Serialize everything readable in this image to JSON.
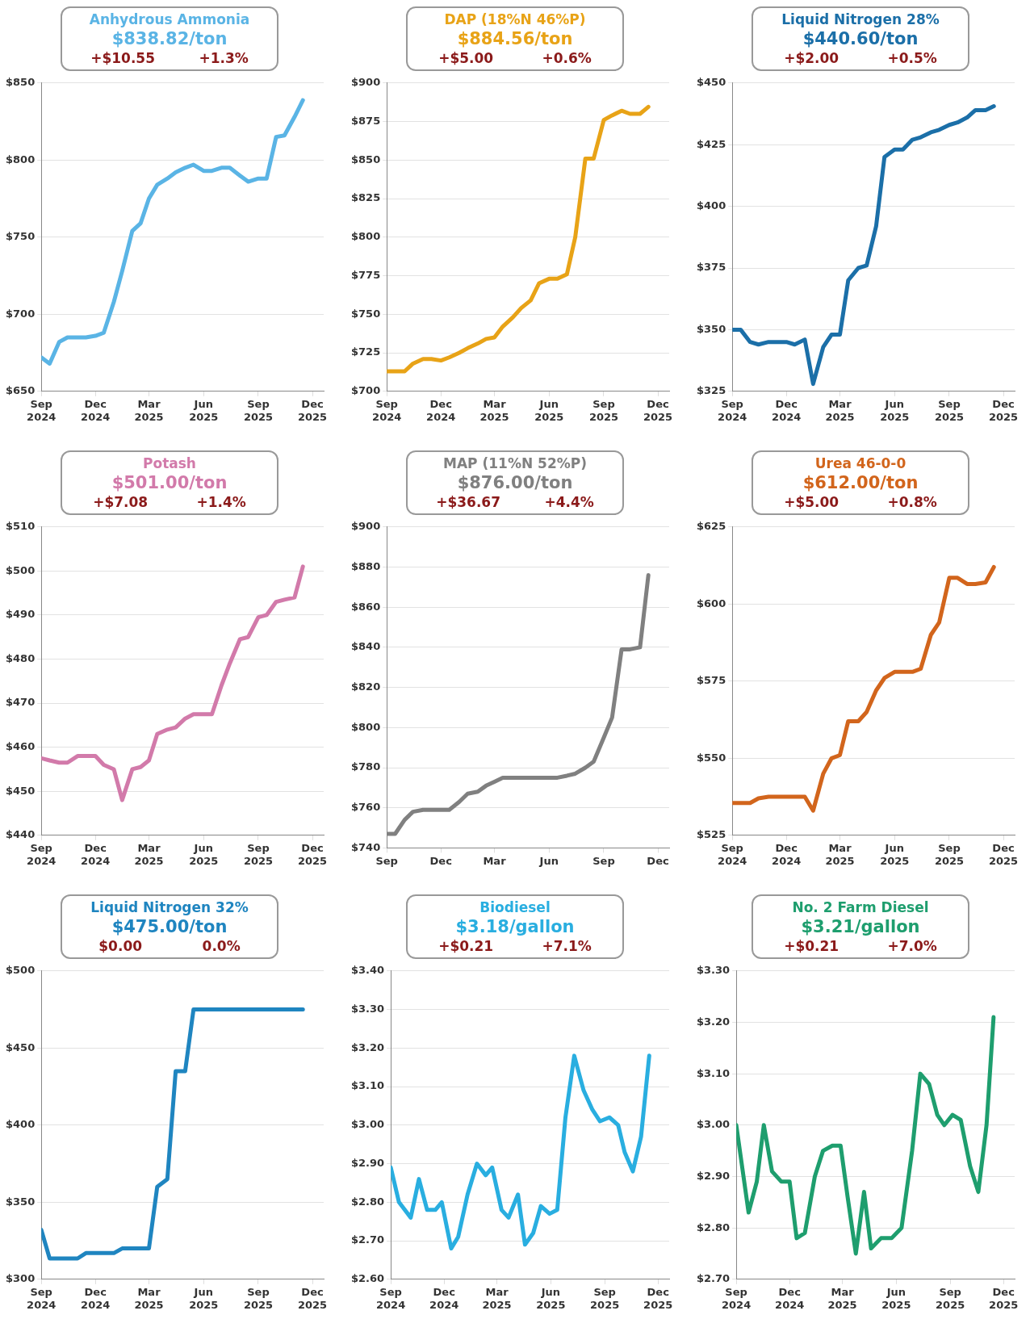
{
  "chart_data": [
    {
      "type": "line",
      "title": "Anhydrous Ammonia",
      "subtitle": "$838.82/ton",
      "annotations": [
        "+$10.55",
        "+1.3%"
      ],
      "marker": "none",
      "grid": "y",
      "x": [
        "2024-09-01",
        "2024-09-15",
        "2024-10-01",
        "2024-10-15",
        "2024-11-01",
        "2024-11-15",
        "2024-12-01",
        "2024-12-15",
        "2025-01-01",
        "2025-01-15",
        "2025-02-01",
        "2025-02-15",
        "2025-03-01",
        "2025-03-15",
        "2025-04-01",
        "2025-04-15",
        "2025-05-01",
        "2025-05-15",
        "2025-06-01",
        "2025-06-15",
        "2025-07-01",
        "2025-07-15",
        "2025-08-01",
        "2025-08-15",
        "2025-09-01",
        "2025-09-15",
        "2025-10-01",
        "2025-10-15",
        "2025-11-01",
        "2025-11-15"
      ],
      "series": [
        {
          "color": "#5ab4e5",
          "values": [
            672,
            668,
            682,
            685,
            685,
            685,
            686,
            688,
            708,
            728,
            754,
            759,
            775,
            784,
            788,
            792,
            795,
            797,
            793,
            793,
            795,
            795,
            790,
            786,
            788,
            788,
            815,
            816,
            828,
            838.82
          ]
        }
      ],
      "xlim": [
        "2024-09-01",
        "2025-12-20"
      ],
      "xticks": [
        {
          "value": "2024-09-01",
          "label": "Sep 2024"
        },
        {
          "value": "2024-12-01",
          "label": "Dec 2024"
        },
        {
          "value": "2025-03-01",
          "label": "Mar 2025"
        },
        {
          "value": "2025-06-01",
          "label": "Jun 2025"
        },
        {
          "value": "2025-09-01",
          "label": "Sep 2025"
        },
        {
          "value": "2025-12-01",
          "label": "Dec 2025"
        }
      ],
      "ylim": [
        650,
        850
      ],
      "yticks": [
        {
          "value": 650,
          "label": "$650"
        },
        {
          "value": 700,
          "label": "$700"
        },
        {
          "value": 750,
          "label": "$750"
        },
        {
          "value": 800,
          "label": "$800"
        },
        {
          "value": 850,
          "label": "$850"
        }
      ]
    },
    {
      "type": "line",
      "title": "DAP (18%N 46%P)",
      "subtitle": "$884.56/ton",
      "annotations": [
        "+$5.00",
        "+0.6%"
      ],
      "marker": "none",
      "grid": "y",
      "x": [
        "2024-09-01",
        "2024-09-15",
        "2024-10-01",
        "2024-10-15",
        "2024-11-01",
        "2024-11-15",
        "2024-12-01",
        "2024-12-15",
        "2025-01-01",
        "2025-01-15",
        "2025-02-01",
        "2025-02-15",
        "2025-03-01",
        "2025-03-15",
        "2025-04-01",
        "2025-04-15",
        "2025-05-01",
        "2025-05-15",
        "2025-06-01",
        "2025-06-15",
        "2025-07-01",
        "2025-07-15",
        "2025-08-01",
        "2025-08-15",
        "2025-09-01",
        "2025-09-15",
        "2025-10-01",
        "2025-10-15",
        "2025-11-01",
        "2025-11-15"
      ],
      "series": [
        {
          "color": "#e8a317",
          "values": [
            713,
            713,
            713,
            718,
            721,
            721,
            720,
            722,
            725,
            728,
            731,
            734,
            735,
            742,
            748,
            754,
            759,
            770,
            773,
            773,
            776,
            800,
            851,
            851,
            876,
            879,
            882,
            880,
            880,
            884.56
          ]
        }
      ],
      "xlim": [
        "2024-09-01",
        "2025-12-20"
      ],
      "xticks": [
        {
          "value": "2024-09-01",
          "label": "Sep 2024"
        },
        {
          "value": "2024-12-01",
          "label": "Dec 2024"
        },
        {
          "value": "2025-03-01",
          "label": "Mar 2025"
        },
        {
          "value": "2025-06-01",
          "label": "Jun 2025"
        },
        {
          "value": "2025-09-01",
          "label": "Sep 2025"
        },
        {
          "value": "2025-12-01",
          "label": "Dec 2025"
        }
      ],
      "ylim": [
        700,
        900
      ],
      "yticks": [
        {
          "value": 700,
          "label": "$700"
        },
        {
          "value": 725,
          "label": "$725"
        },
        {
          "value": 750,
          "label": "$750"
        },
        {
          "value": 775,
          "label": "$775"
        },
        {
          "value": 800,
          "label": "$800"
        },
        {
          "value": 825,
          "label": "$825"
        },
        {
          "value": 850,
          "label": "$850"
        },
        {
          "value": 875,
          "label": "$875"
        },
        {
          "value": 900,
          "label": "$900"
        }
      ]
    },
    {
      "type": "line",
      "title": "Liquid Nitrogen 28%",
      "subtitle": "$440.60/ton",
      "annotations": [
        "+$2.00",
        "+0.5%"
      ],
      "marker": "none",
      "grid": "y",
      "x": [
        "2024-09-01",
        "2024-09-15",
        "2024-10-01",
        "2024-10-15",
        "2024-11-01",
        "2024-11-15",
        "2024-12-01",
        "2024-12-15",
        "2025-01-01",
        "2025-01-15",
        "2025-02-01",
        "2025-02-15",
        "2025-03-01",
        "2025-03-15",
        "2025-04-01",
        "2025-04-15",
        "2025-05-01",
        "2025-05-15",
        "2025-06-01",
        "2025-06-15",
        "2025-07-01",
        "2025-07-15",
        "2025-08-01",
        "2025-08-15",
        "2025-09-01",
        "2025-09-15",
        "2025-10-01",
        "2025-10-15",
        "2025-11-01",
        "2025-11-15"
      ],
      "series": [
        {
          "color": "#1b6fa8",
          "values": [
            350,
            350,
            345,
            344,
            345,
            345,
            345,
            344,
            346,
            328,
            343,
            348,
            348,
            370,
            375,
            376,
            392,
            420,
            423,
            423,
            427,
            428,
            430,
            431,
            433,
            434,
            436,
            439,
            439,
            440.6
          ]
        }
      ],
      "xlim": [
        "2024-09-01",
        "2025-12-20"
      ],
      "xticks": [
        {
          "value": "2024-09-01",
          "label": "Sep 2024"
        },
        {
          "value": "2024-12-01",
          "label": "Dec 2024"
        },
        {
          "value": "2025-03-01",
          "label": "Mar 2025"
        },
        {
          "value": "2025-06-01",
          "label": "Jun 2025"
        },
        {
          "value": "2025-09-01",
          "label": "Sep 2025"
        },
        {
          "value": "2025-12-01",
          "label": "Dec 2025"
        }
      ],
      "ylim": [
        325,
        450
      ],
      "yticks": [
        {
          "value": 325,
          "label": "$325"
        },
        {
          "value": 350,
          "label": "$350"
        },
        {
          "value": 375,
          "label": "$375"
        },
        {
          "value": 400,
          "label": "$400"
        },
        {
          "value": 425,
          "label": "$425"
        },
        {
          "value": 450,
          "label": "$450"
        }
      ]
    },
    {
      "type": "line",
      "title": "Potash",
      "subtitle": "$501.00/ton",
      "annotations": [
        "+$7.08",
        "+1.4%"
      ],
      "marker": "none",
      "grid": "y",
      "x": [
        "2024-09-01",
        "2024-09-15",
        "2024-10-01",
        "2024-10-15",
        "2024-11-01",
        "2024-11-15",
        "2024-12-01",
        "2024-12-15",
        "2025-01-01",
        "2025-01-15",
        "2025-02-01",
        "2025-02-15",
        "2025-03-01",
        "2025-03-15",
        "2025-04-01",
        "2025-04-15",
        "2025-05-01",
        "2025-05-15",
        "2025-06-01",
        "2025-06-15",
        "2025-07-01",
        "2025-07-15",
        "2025-08-01",
        "2025-08-15",
        "2025-09-01",
        "2025-09-15",
        "2025-10-01",
        "2025-10-15",
        "2025-11-01",
        "2025-11-15"
      ],
      "series": [
        {
          "color": "#d27aaa",
          "values": [
            457.5,
            457,
            456.5,
            456.5,
            458,
            458,
            458,
            456,
            455,
            448,
            455,
            455.5,
            457,
            463,
            464,
            464.5,
            466.5,
            467.5,
            467.5,
            467.5,
            474,
            479,
            484.5,
            485,
            489.5,
            490,
            493,
            493.5,
            494,
            501
          ]
        }
      ],
      "xlim": [
        "2024-09-01",
        "2025-12-20"
      ],
      "xticks": [
        {
          "value": "2024-09-01",
          "label": "Sep 2024"
        },
        {
          "value": "2024-12-01",
          "label": "Dec 2024"
        },
        {
          "value": "2025-03-01",
          "label": "Mar 2025"
        },
        {
          "value": "2025-06-01",
          "label": "Jun 2025"
        },
        {
          "value": "2025-09-01",
          "label": "Sep 2025"
        },
        {
          "value": "2025-12-01",
          "label": "Dec 2025"
        }
      ],
      "ylim": [
        440,
        510
      ],
      "yticks": [
        {
          "value": 440,
          "label": "$440"
        },
        {
          "value": 450,
          "label": "$450"
        },
        {
          "value": 460,
          "label": "$460"
        },
        {
          "value": 470,
          "label": "$470"
        },
        {
          "value": 480,
          "label": "$480"
        },
        {
          "value": 490,
          "label": "$490"
        },
        {
          "value": 500,
          "label": "$500"
        },
        {
          "value": 510,
          "label": "$510"
        }
      ]
    },
    {
      "type": "line",
      "title": "MAP (11%N 52%P)",
      "subtitle": "$876.00/ton",
      "annotations": [
        "+$36.67",
        "+4.4%"
      ],
      "marker": "none",
      "grid": "y",
      "x": [
        "2024-09-01",
        "2024-09-15",
        "2024-10-01",
        "2024-10-15",
        "2024-11-01",
        "2024-11-15",
        "2024-12-01",
        "2024-12-15",
        "2025-01-01",
        "2025-01-15",
        "2025-02-01",
        "2025-02-15",
        "2025-03-01",
        "2025-03-15",
        "2025-04-01",
        "2025-04-15",
        "2025-05-01",
        "2025-05-15",
        "2025-06-01",
        "2025-06-15",
        "2025-07-01",
        "2025-07-15",
        "2025-08-01",
        "2025-08-15",
        "2025-09-01",
        "2025-09-15",
        "2025-10-01",
        "2025-10-15",
        "2025-11-01",
        "2025-11-15"
      ],
      "series": [
        {
          "color": "#808080",
          "values": [
            747,
            747,
            754,
            758,
            759,
            759,
            759,
            759,
            763,
            767,
            768,
            771,
            773,
            775,
            775,
            775,
            775,
            775,
            775,
            775,
            776,
            777,
            780,
            783,
            795,
            805,
            839,
            839,
            840,
            876
          ]
        }
      ],
      "xlim": [
        "2024-09-01",
        "2025-12-20"
      ],
      "xticks": [
        {
          "value": "2024-09-01",
          "label": "Sep"
        },
        {
          "value": "2024-12-01",
          "label": "Dec"
        },
        {
          "value": "2025-03-01",
          "label": "Mar"
        },
        {
          "value": "2025-06-01",
          "label": "Jun"
        },
        {
          "value": "2025-09-01",
          "label": "Sep"
        },
        {
          "value": "2025-12-01",
          "label": "Dec"
        }
      ],
      "ylim": [
        740,
        900
      ],
      "yticks": [
        {
          "value": 740,
          "label": "$740"
        },
        {
          "value": 760,
          "label": "$760"
        },
        {
          "value": 780,
          "label": "$780"
        },
        {
          "value": 800,
          "label": "$800"
        },
        {
          "value": 820,
          "label": "$820"
        },
        {
          "value": 840,
          "label": "$840"
        },
        {
          "value": 860,
          "label": "$860"
        },
        {
          "value": 880,
          "label": "$880"
        },
        {
          "value": 900,
          "label": "$900"
        }
      ]
    },
    {
      "type": "line",
      "title": "Urea 46-0-0",
      "subtitle": "$612.00/ton",
      "annotations": [
        "+$5.00",
        "+0.8%"
      ],
      "marker": "none",
      "grid": "y",
      "x": [
        "2024-09-01",
        "2024-09-15",
        "2024-10-01",
        "2024-10-15",
        "2024-11-01",
        "2024-11-15",
        "2024-12-01",
        "2024-12-15",
        "2025-01-01",
        "2025-01-15",
        "2025-02-01",
        "2025-02-15",
        "2025-03-01",
        "2025-03-15",
        "2025-04-01",
        "2025-04-15",
        "2025-05-01",
        "2025-05-15",
        "2025-06-01",
        "2025-06-15",
        "2025-07-01",
        "2025-07-15",
        "2025-08-01",
        "2025-08-15",
        "2025-09-01",
        "2025-09-15",
        "2025-10-01",
        "2025-10-15",
        "2025-11-01",
        "2025-11-15"
      ],
      "series": [
        {
          "color": "#d2651c",
          "values": [
            535.5,
            535.5,
            535.5,
            537,
            537.5,
            537.5,
            537.5,
            537.5,
            537.5,
            533,
            545,
            550,
            551,
            562,
            562,
            565,
            572,
            576,
            578,
            578,
            578,
            579,
            590,
            594,
            608.5,
            608.5,
            606.5,
            606.5,
            607,
            612
          ]
        }
      ],
      "xlim": [
        "2024-09-01",
        "2025-12-20"
      ],
      "xticks": [
        {
          "value": "2024-09-01",
          "label": "Sep 2024"
        },
        {
          "value": "2024-12-01",
          "label": "Dec 2024"
        },
        {
          "value": "2025-03-01",
          "label": "Mar 2025"
        },
        {
          "value": "2025-06-01",
          "label": "Jun 2025"
        },
        {
          "value": "2025-09-01",
          "label": "Sep 2025"
        },
        {
          "value": "2025-12-01",
          "label": "Dec 2025"
        }
      ],
      "ylim": [
        525,
        625
      ],
      "yticks": [
        {
          "value": 525,
          "label": "$525"
        },
        {
          "value": 550,
          "label": "$550"
        },
        {
          "value": 575,
          "label": "$575"
        },
        {
          "value": 600,
          "label": "$600"
        },
        {
          "value": 625,
          "label": "$625"
        }
      ]
    },
    {
      "type": "line",
      "title": "Liquid Nitrogen 32%",
      "subtitle": "$475.00/ton",
      "annotations": [
        "$0.00",
        "0.0%"
      ],
      "marker": "none",
      "grid": "y",
      "x": [
        "2024-09-01",
        "2024-09-15",
        "2024-10-01",
        "2024-10-15",
        "2024-11-01",
        "2024-11-15",
        "2024-12-01",
        "2024-12-15",
        "2025-01-01",
        "2025-01-15",
        "2025-02-01",
        "2025-02-15",
        "2025-03-01",
        "2025-03-15",
        "2025-04-01",
        "2025-04-15",
        "2025-05-01",
        "2025-05-15",
        "2025-06-01",
        "2025-06-15",
        "2025-07-01",
        "2025-07-15",
        "2025-08-01",
        "2025-08-15",
        "2025-09-01",
        "2025-09-15",
        "2025-10-01",
        "2025-10-15",
        "2025-11-01",
        "2025-11-15"
      ],
      "series": [
        {
          "color": "#1f85c0",
          "values": [
            332,
            313.5,
            313.5,
            313.5,
            313.5,
            317,
            317,
            317,
            317,
            320,
            320,
            320,
            320,
            360,
            365,
            435,
            435,
            475,
            475,
            475,
            475,
            475,
            475,
            475,
            475,
            475,
            475,
            475,
            475,
            475
          ]
        }
      ],
      "xlim": [
        "2024-09-01",
        "2025-12-20"
      ],
      "xticks": [
        {
          "value": "2024-09-01",
          "label": "Sep 2024"
        },
        {
          "value": "2024-12-01",
          "label": "Dec 2024"
        },
        {
          "value": "2025-03-01",
          "label": "Mar 2025"
        },
        {
          "value": "2025-06-01",
          "label": "Jun 2025"
        },
        {
          "value": "2025-09-01",
          "label": "Sep 2025"
        },
        {
          "value": "2025-12-01",
          "label": "Dec 2025"
        }
      ],
      "ylim": [
        300,
        500
      ],
      "yticks": [
        {
          "value": 300,
          "label": "$300"
        },
        {
          "value": 350,
          "label": "$350"
        },
        {
          "value": 400,
          "label": "$400"
        },
        {
          "value": 450,
          "label": "$450"
        },
        {
          "value": 500,
          "label": "$500"
        }
      ]
    },
    {
      "type": "line",
      "title": "Biodiesel",
      "subtitle": "$3.18/gallon",
      "annotations": [
        "+$0.21",
        "+7.1%"
      ],
      "marker": "none",
      "grid": "y",
      "x": [
        "2024-09-01",
        "2024-09-15",
        "2024-10-05",
        "2024-10-19",
        "2024-11-02",
        "2024-11-16",
        "2024-11-27",
        "2024-12-13",
        "2024-12-25",
        "2025-01-10",
        "2025-01-26",
        "2025-02-10",
        "2025-02-21",
        "2025-03-09",
        "2025-03-21",
        "2025-04-06",
        "2025-04-18",
        "2025-05-02",
        "2025-05-15",
        "2025-05-30",
        "2025-06-12",
        "2025-06-26",
        "2025-07-11",
        "2025-07-27",
        "2025-08-11",
        "2025-08-24",
        "2025-09-09",
        "2025-09-24",
        "2025-10-05",
        "2025-10-19",
        "2025-11-02",
        "2025-11-16"
      ],
      "series": [
        {
          "color": "#29aee0",
          "values": [
            2.89,
            2.8,
            2.76,
            2.86,
            2.78,
            2.78,
            2.8,
            2.68,
            2.71,
            2.82,
            2.9,
            2.87,
            2.89,
            2.78,
            2.76,
            2.82,
            2.69,
            2.72,
            2.79,
            2.77,
            2.78,
            3.02,
            3.18,
            3.09,
            3.04,
            3.01,
            3.02,
            3.0,
            2.93,
            2.88,
            2.97,
            3.18
          ]
        }
      ],
      "xlim": [
        "2024-09-01",
        "2025-12-20"
      ],
      "xticks": [
        {
          "value": "2024-09-01",
          "label": "Sep 2024"
        },
        {
          "value": "2024-12-01",
          "label": "Dec 2024"
        },
        {
          "value": "2025-03-01",
          "label": "Mar 2025"
        },
        {
          "value": "2025-06-01",
          "label": "Jun 2025"
        },
        {
          "value": "2025-09-01",
          "label": "Sep 2025"
        },
        {
          "value": "2025-12-01",
          "label": "Dec 2025"
        }
      ],
      "ylim": [
        2.6,
        3.4
      ],
      "yticks": [
        {
          "value": 2.6,
          "label": "$2.60"
        },
        {
          "value": 2.7,
          "label": "$2.70"
        },
        {
          "value": 2.8,
          "label": "$2.80"
        },
        {
          "value": 2.9,
          "label": "$2.90"
        },
        {
          "value": 3.0,
          "label": "$3.00"
        },
        {
          "value": 3.1,
          "label": "$3.10"
        },
        {
          "value": 3.2,
          "label": "$3.20"
        },
        {
          "value": 3.3,
          "label": "$3.30"
        },
        {
          "value": 3.4,
          "label": "$3.40"
        }
      ]
    },
    {
      "type": "line",
      "title": "No. 2 Farm Diesel",
      "subtitle": "$3.21/gallon",
      "annotations": [
        "+$0.21",
        "+7.0%"
      ],
      "marker": "none",
      "grid": "y",
      "x": [
        "2024-09-01",
        "2024-09-22",
        "2024-10-06",
        "2024-10-18",
        "2024-11-01",
        "2024-11-17",
        "2024-12-01",
        "2024-12-13",
        "2024-12-27",
        "2025-01-13",
        "2025-01-27",
        "2025-02-12",
        "2025-02-26",
        "2025-03-10",
        "2025-03-24",
        "2025-04-07",
        "2025-04-19",
        "2025-05-06",
        "2025-05-24",
        "2025-06-10",
        "2025-06-28",
        "2025-07-12",
        "2025-07-27",
        "2025-08-10",
        "2025-08-22",
        "2025-09-05",
        "2025-09-19",
        "2025-10-05",
        "2025-10-19",
        "2025-11-02",
        "2025-11-14"
      ],
      "series": [
        {
          "color": "#1e9e6e",
          "values": [
            3.0,
            2.83,
            2.89,
            3.0,
            2.91,
            2.89,
            2.89,
            2.78,
            2.79,
            2.9,
            2.95,
            2.96,
            2.96,
            2.86,
            2.75,
            2.87,
            2.76,
            2.78,
            2.78,
            2.8,
            2.95,
            3.1,
            3.08,
            3.02,
            3.0,
            3.02,
            3.01,
            2.92,
            2.87,
            3.0,
            3.21
          ]
        }
      ],
      "xlim": [
        "2024-09-01",
        "2025-12-20"
      ],
      "xticks": [
        {
          "value": "2024-09-01",
          "label": "Sep 2024"
        },
        {
          "value": "2024-12-01",
          "label": "Dec 2024"
        },
        {
          "value": "2025-03-01",
          "label": "Mar 2025"
        },
        {
          "value": "2025-06-01",
          "label": "Jun 2025"
        },
        {
          "value": "2025-09-01",
          "label": "Sep 2025"
        },
        {
          "value": "2025-12-01",
          "label": "Dec 2025"
        }
      ],
      "ylim": [
        2.7,
        3.3
      ],
      "yticks": [
        {
          "value": 2.7,
          "label": "$2.70"
        },
        {
          "value": 2.8,
          "label": "$2.80"
        },
        {
          "value": 2.9,
          "label": "$2.90"
        },
        {
          "value": 3.0,
          "label": "$3.00"
        },
        {
          "value": 3.1,
          "label": "$3.10"
        },
        {
          "value": 3.2,
          "label": "$3.20"
        },
        {
          "value": 3.3,
          "label": "$3.30"
        }
      ]
    }
  ]
}
